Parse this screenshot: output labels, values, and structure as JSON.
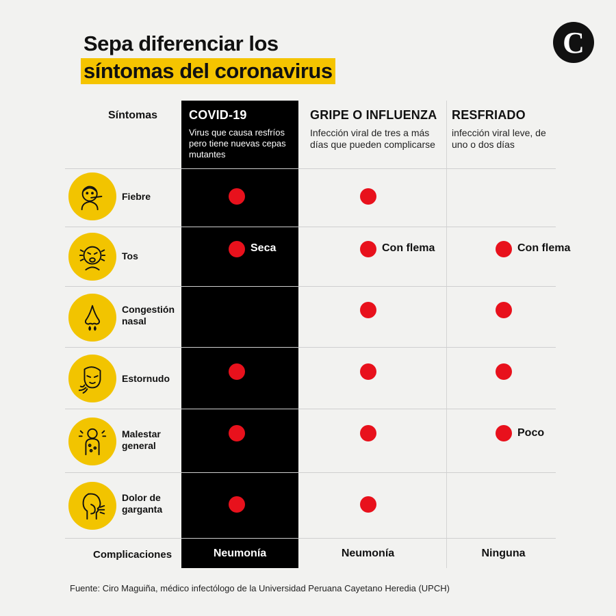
{
  "title": {
    "line1": "Sepa diferenciar los",
    "line2": "síntomas del coronavirus"
  },
  "logo": {
    "letter": "C"
  },
  "header": {
    "symptoms_label": "Síntomas",
    "columns": [
      {
        "name": "COVID-19",
        "description": "Virus que causa resfríos pero tiene nuevas cepas mutantes"
      },
      {
        "name": "GRIPE O INFLUENZA",
        "description": "Infección viral de tres a más días que pueden complicarse"
      },
      {
        "name": "RESFRIADO",
        "description": "infección viral leve, de uno o dos días"
      }
    ]
  },
  "rows": [
    {
      "symptom": "Fiebre",
      "icon": "thermometer-face-icon",
      "covid": true,
      "gripe": true,
      "resfriado": false
    },
    {
      "symptom": "Tos",
      "icon": "coughing-face-icon",
      "covid": true,
      "covid_note": "Seca",
      "gripe": true,
      "gripe_note": "Con flema",
      "resfriado": true,
      "resfriado_note": "Con flema"
    },
    {
      "symptom": "Congestión nasal",
      "icon": "runny-nose-icon",
      "covid": false,
      "gripe": true,
      "resfriado": true
    },
    {
      "symptom": "Estornudo",
      "icon": "sneezing-face-icon",
      "covid": true,
      "gripe": true,
      "resfriado": true
    },
    {
      "symptom": "Malestar general",
      "icon": "sick-body-icon",
      "covid": true,
      "gripe": true,
      "resfriado": true,
      "resfriado_note": "Poco"
    },
    {
      "symptom": "Dolor de garganta",
      "icon": "sore-throat-icon",
      "covid": true,
      "gripe": true,
      "resfriado": false
    }
  ],
  "complications": {
    "label": "Complicaciones",
    "covid": "Neumonía",
    "gripe": "Neumonía",
    "resfriado": "Ninguna"
  },
  "source": "Fuente: Ciro Maguiña, médico infectólogo de la Universidad Peruana Cayetano Heredia (UPCH)",
  "colors": {
    "accent_yellow": "#f5c400",
    "dot_red": "#e8111c",
    "covid_column": "#000000",
    "background": "#f2f2f0"
  }
}
